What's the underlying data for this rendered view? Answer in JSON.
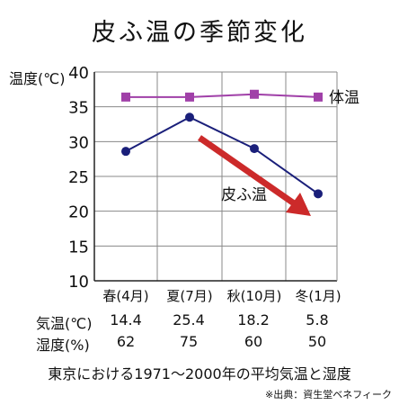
{
  "chart_data": {
    "type": "line",
    "title": "皮ふ温の季節変化",
    "ylabel": "温度(℃)",
    "ylim": [
      10,
      40
    ],
    "yticks": [
      10,
      15,
      20,
      25,
      30,
      35,
      40
    ],
    "grid": true,
    "categories": [
      "春(4月)",
      "夏(7月)",
      "秋(10月)",
      "冬(1月)"
    ],
    "series": [
      {
        "name": "体温",
        "values": [
          36.4,
          36.4,
          36.8,
          36.4
        ],
        "color": "#a040a8",
        "marker": "square"
      },
      {
        "name": "皮ふ温",
        "values": [
          28.6,
          33.5,
          29.0,
          22.5
        ],
        "color": "#1a1f7a",
        "marker": "circle"
      }
    ],
    "annotation_arrow_color": "#cc2a2a"
  },
  "table": {
    "rows": [
      {
        "label": "気温(℃)",
        "values": [
          "14.4",
          "25.4",
          "18.2",
          "5.8"
        ]
      },
      {
        "label": "湿度(%)",
        "values": [
          "62",
          "75",
          "60",
          "50"
        ]
      }
    ]
  },
  "caption": "東京における1971〜2000年の平均気温と湿度",
  "source": "※出典：資生堂ベネフィーク"
}
